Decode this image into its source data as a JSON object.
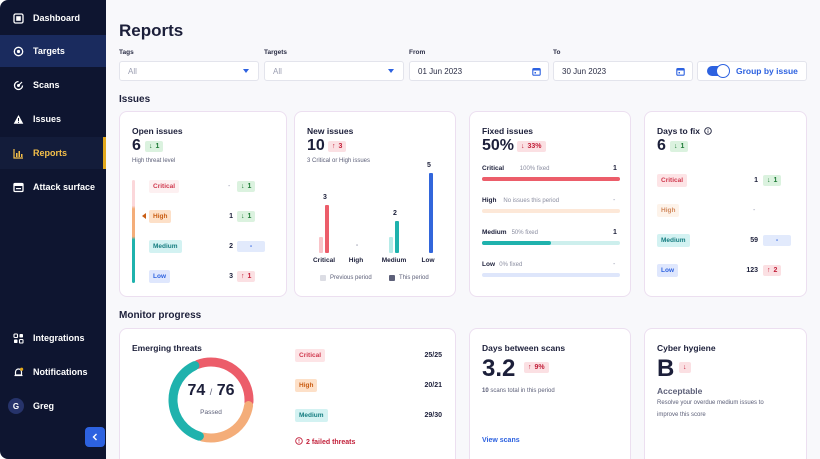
{
  "sidebar": {
    "top_items": [
      {
        "label": "Dashboard",
        "icon": "dashboard-icon"
      },
      {
        "label": "Targets",
        "icon": "target-icon",
        "active": true
      },
      {
        "label": "Scans",
        "icon": "scan-icon"
      },
      {
        "label": "Issues",
        "icon": "warning-icon"
      },
      {
        "label": "Reports",
        "icon": "chart-icon",
        "current": true
      },
      {
        "label": "Attack surface",
        "icon": "attack-surface-icon"
      }
    ],
    "bottom_items": [
      {
        "label": "Integrations",
        "icon": "integrations-icon"
      },
      {
        "label": "Notifications",
        "icon": "bell-icon"
      }
    ],
    "user": {
      "initial": "G",
      "name": "Greg"
    },
    "collapse_icon": "chevron-left-icon"
  },
  "page": {
    "title": "Reports"
  },
  "filters": {
    "tags": {
      "label": "Tags",
      "value": "All"
    },
    "targets": {
      "label": "Targets",
      "value": "All"
    },
    "from": {
      "label": "From",
      "value": "01 Jun 2023"
    },
    "to": {
      "label": "To",
      "value": "30 Jun 2023"
    },
    "group_by": {
      "label": "Group by issue",
      "on": true
    }
  },
  "issues_section": {
    "title": "Issues"
  },
  "open_issues": {
    "title": "Open issues",
    "value": "6",
    "trend": {
      "direction": "down",
      "value": "1"
    },
    "subtitle": "High threat level",
    "rows": [
      {
        "label": "Critical",
        "count": "-",
        "trend": "1",
        "direction": "down"
      },
      {
        "label": "High",
        "count": "1",
        "trend": "1",
        "direction": "down"
      },
      {
        "label": "Medium",
        "count": "2",
        "trend": "-",
        "direction": "neutral"
      },
      {
        "label": "Low",
        "count": "3",
        "trend": "1",
        "direction": "up"
      }
    ]
  },
  "new_issues": {
    "title": "New issues",
    "value": "10",
    "trend": {
      "direction": "up",
      "value": "3"
    },
    "subtitle": "3 Critical or High issues",
    "chart_data": {
      "type": "bar",
      "categories": [
        "Critical",
        "High",
        "Medium",
        "Low"
      ],
      "series": [
        {
          "name": "Previous period",
          "values": [
            1,
            0,
            1,
            0
          ]
        },
        {
          "name": "This period",
          "values": [
            3,
            0,
            2,
            5
          ]
        }
      ],
      "data_labels": [
        "3",
        "-",
        "2",
        "5"
      ],
      "colors": {
        "Critical": [
          "#f9c4c9",
          "#ec5d6a"
        ],
        "High": [
          "#fbe1cd",
          "#f4ad79"
        ],
        "Medium": [
          "#b6ebe8",
          "#1fb2ad"
        ],
        "Low": [
          "#cdd8f9",
          "#3266db"
        ]
      }
    },
    "legend": {
      "previous": "Previous period",
      "current": "This period"
    }
  },
  "fixed_issues": {
    "title": "Fixed issues",
    "value": "50%",
    "trend": {
      "direction": "down",
      "value": "33%"
    },
    "rows": [
      {
        "label": "Critical",
        "note": "100% fixed",
        "count": "1",
        "fraction": 1.0,
        "color": "#ec5d6a",
        "track": "#fbe0e3"
      },
      {
        "label": "High",
        "note": "No issues this period",
        "count": "-",
        "fraction": 0,
        "color": "#f4ad79",
        "track": "#fde8d8"
      },
      {
        "label": "Medium",
        "note": "50% fixed",
        "count": "1",
        "fraction": 0.5,
        "color": "#1fb2ad",
        "track": "#cdefed"
      },
      {
        "label": "Low",
        "note": "0% fixed",
        "count": "-",
        "fraction": 0,
        "color": "#3266db",
        "track": "#dee6fb"
      }
    ]
  },
  "days_to_fix": {
    "title": "Days to fix",
    "value": "6",
    "trend": {
      "direction": "down",
      "value": "1"
    },
    "info_icon": "info-icon",
    "rows": [
      {
        "label": "Critical",
        "count": "1",
        "trend": "1",
        "direction": "down"
      },
      {
        "label": "High",
        "count": "-",
        "trend": "",
        "direction": "none"
      },
      {
        "label": "Medium",
        "count": "59",
        "trend": "-",
        "direction": "neutral"
      },
      {
        "label": "Low",
        "count": "123",
        "trend": "2",
        "direction": "up"
      }
    ]
  },
  "monitor_section": {
    "title": "Monitor progress"
  },
  "emerging_threats": {
    "title": "Emerging threats",
    "passed": "74",
    "total": "76",
    "separator": "/",
    "caption": "Passed",
    "rows": [
      {
        "label": "Critical",
        "value": "25/25"
      },
      {
        "label": "High",
        "value": "20/21"
      },
      {
        "label": "Medium",
        "value": "29/30"
      }
    ],
    "failed_link": "2 failed threats",
    "ring_segments": [
      {
        "value": 25,
        "color": "#ec5d6a"
      },
      {
        "value": 21,
        "color": "#f4ad79"
      },
      {
        "value": 30,
        "color": "#1fb2ad"
      }
    ]
  },
  "days_between_scans": {
    "title": "Days between scans",
    "value": "3.2",
    "trend": {
      "direction": "up",
      "value": "9%"
    },
    "subtitle_count": "10",
    "subtitle_text": "scans total in this period",
    "link": "View scans"
  },
  "cyber_hygiene": {
    "title": "Cyber hygiene",
    "grade": "B",
    "trend": {
      "direction": "down",
      "value": ""
    },
    "status": "Acceptable",
    "description_line1": "Resolve your overdue medium issues to",
    "description_line2": "improve this score"
  }
}
